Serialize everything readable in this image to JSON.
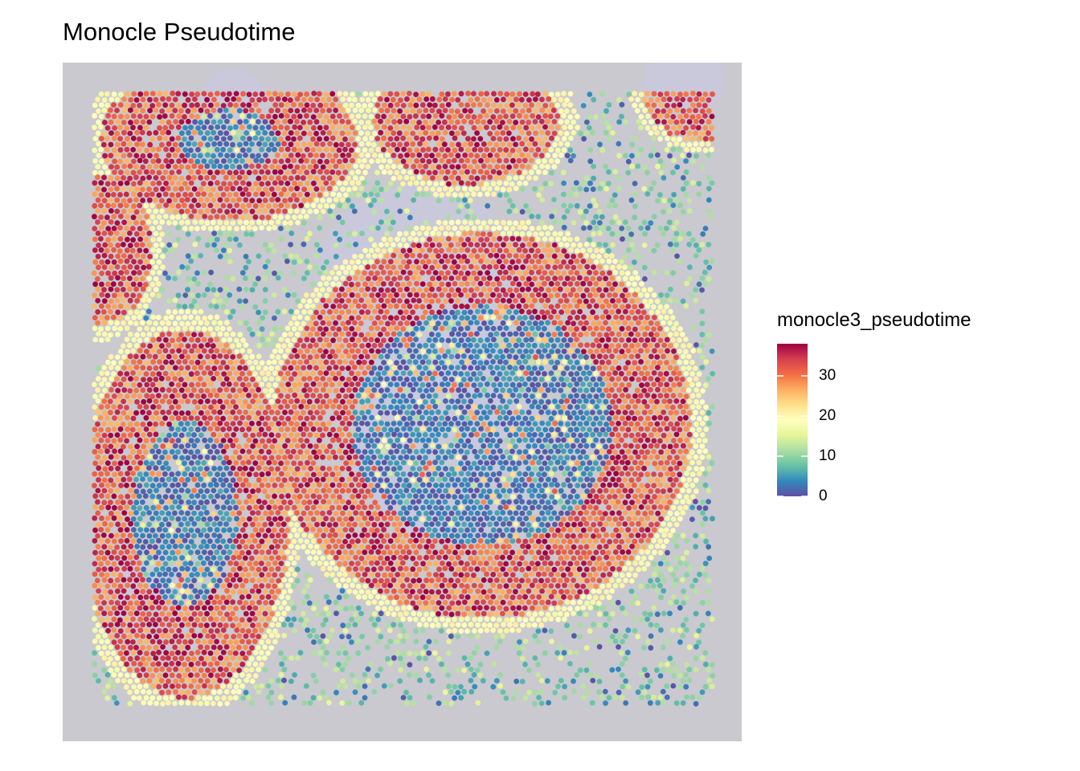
{
  "chart_data": {
    "type": "scatter",
    "title": "Monocle Pseudotime",
    "xlabel": "",
    "ylabel": "",
    "color_variable": "monocle3_pseudotime",
    "color_range": [
      0,
      38
    ],
    "color_breaks": [
      0,
      10,
      20,
      30
    ],
    "color_break_labels": [
      "0",
      "10",
      "20",
      "30"
    ],
    "palette": [
      "#5E4FA2",
      "#3288BD",
      "#66C2A5",
      "#ABDDA4",
      "#E6F598",
      "#FFFFBF",
      "#FEE08B",
      "#FDAE61",
      "#F46D43",
      "#D53E4F",
      "#9E0142"
    ],
    "background_color": "#C9C9CF",
    "legend_position": "right",
    "grid": false,
    "structure_description": [
      {
        "region": "large central ring",
        "outer_rim_pseudotime": 18,
        "ring_body_pseudotime": 33,
        "core_pseudotime": 3
      },
      {
        "region": "lower-left ring",
        "outer_rim_pseudotime": 18,
        "ring_body_pseudotime": 33,
        "core_pseudotime": 3
      },
      {
        "region": "top-left arc",
        "outer_rim_pseudotime": 18,
        "ring_body_pseudotime": 31,
        "core_pseudotime": 3
      },
      {
        "region": "top-center arc",
        "outer_rim_pseudotime": 18,
        "ring_body_pseudotime": 31
      },
      {
        "region": "left-edge arc",
        "outer_rim_pseudotime": 18,
        "ring_body_pseudotime": 30
      },
      {
        "region": "top-right corner arc",
        "outer_rim_pseudotime": 18,
        "ring_body_pseudotime": 33
      },
      {
        "region": "inter-ring background",
        "pseudotime_range": [
          5,
          16
        ]
      }
    ]
  }
}
